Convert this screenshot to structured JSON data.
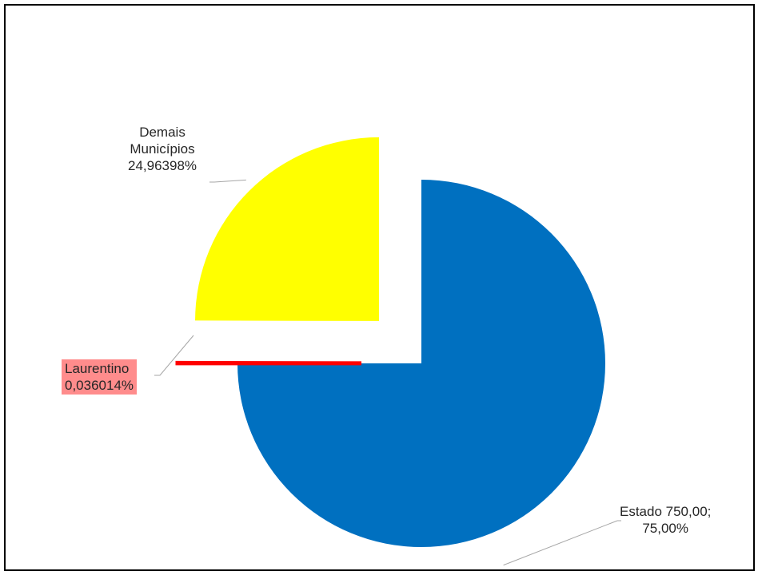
{
  "chart_data": {
    "type": "pie",
    "start_angle_deg": -90,
    "direction": "clockwise",
    "slices": [
      {
        "name": "Estado",
        "value": 750.0,
        "percent": 75.0,
        "color": "#0070C0",
        "exploded": false,
        "label_lines": [
          "Estado 750,00;",
          "75,00%"
        ]
      },
      {
        "name": "Laurentino",
        "value": 0.36014,
        "percent": 0.036014,
        "color": "#FF0000",
        "exploded": true,
        "label_lines": [
          "Laurentino",
          "0,036014%"
        ],
        "label_background": "#FF8C8C"
      },
      {
        "name": "Demais Municípios",
        "value": 249.63986,
        "percent": 24.96398,
        "color": "#FFFF00",
        "exploded": true,
        "label_lines": [
          "Demais",
          "Municípios",
          "24,96398%"
        ]
      }
    ],
    "legend": "none",
    "leader_line_color": "#A6A6A6"
  }
}
